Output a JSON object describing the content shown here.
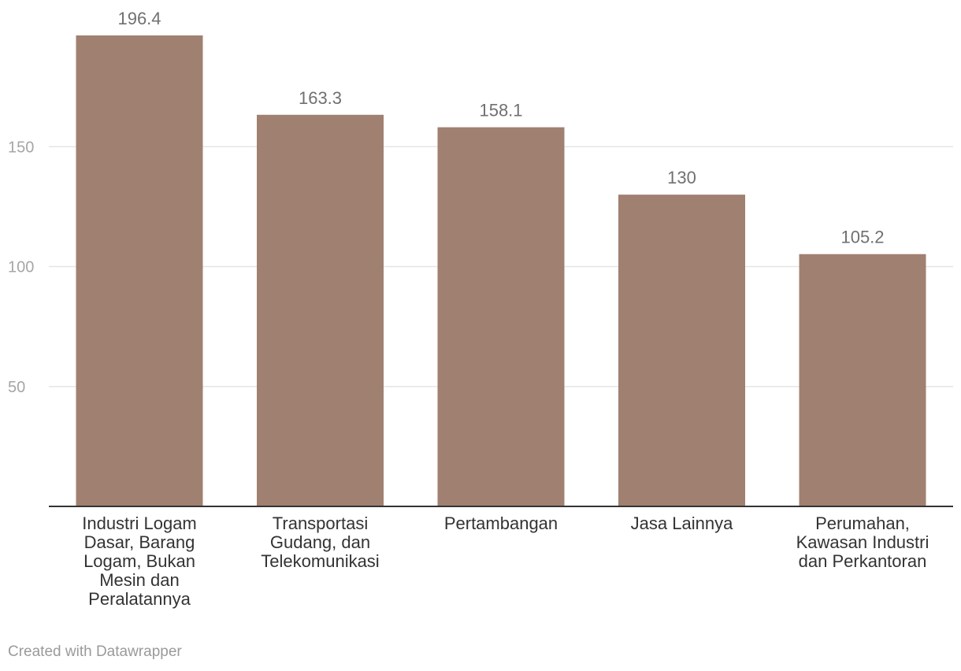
{
  "chart_data": {
    "type": "bar",
    "categories": [
      "Industri Logam Dasar, Barang Logam, Bukan Mesin dan Peralatannya",
      "Transportasi Gudang, dan Telekomunikasi",
      "Pertambangan",
      "Jasa Lainnya",
      "Perumahan, Kawasan Industri dan Perkantoran"
    ],
    "category_label_lines": [
      [
        "Industri Logam",
        "Dasar, Barang",
        "Logam, Bukan",
        "Mesin dan",
        "Peralatannya"
      ],
      [
        "Transportasi",
        "Gudang, dan",
        "Telekomunikasi"
      ],
      [
        "Pertambangan"
      ],
      [
        "Jasa Lainnya"
      ],
      [
        "Perumahan,",
        "Kawasan Industri",
        "dan Perkantoran"
      ]
    ],
    "values": [
      196.4,
      163.3,
      158.1,
      130,
      105.2
    ],
    "value_labels": [
      "196.4",
      "163.3",
      "158.1",
      "130",
      "105.2"
    ],
    "ylim": [
      0,
      200
    ],
    "y_ticks": [
      50,
      100,
      150
    ],
    "y_tick_labels": [
      "50",
      "100",
      "150"
    ],
    "grid": true,
    "bar_color": "#a08070",
    "title": "",
    "xlabel": "",
    "ylabel": ""
  },
  "footer": {
    "credit": "Created with Datawrapper"
  }
}
